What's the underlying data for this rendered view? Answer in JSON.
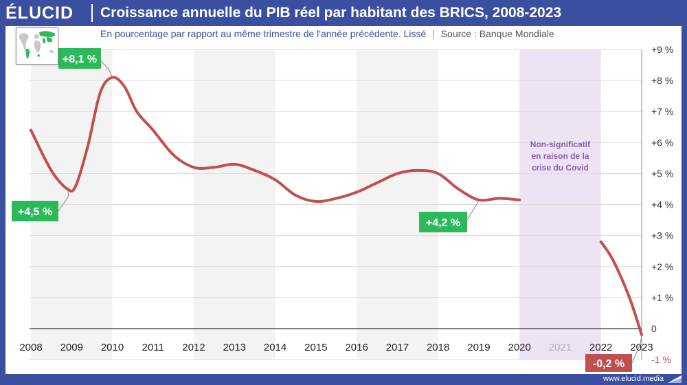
{
  "header": {
    "logo": "ÉLUCID",
    "title": "Croissance annuelle du PIB réel par habitant des BRICS, 2008-2023"
  },
  "subtitle": {
    "text": "En pourcentage par rapport au même trimestre de l'année précédente. Lissé",
    "separator": "|",
    "source": "Source : Banque Mondiale"
  },
  "footer": {
    "url": "www.elucid.media"
  },
  "colors": {
    "brand": "#3b4fa0",
    "line": "#c0504d",
    "label_green": "#2eb85c",
    "label_red": "#c0504d",
    "covid_band": "#ece4f2",
    "covid_text": "#8e5bb5"
  },
  "map_icon": "world-map-brics-icon",
  "chart_data": {
    "type": "line",
    "title": "Croissance annuelle du PIB réel par habitant des BRICS, 2008-2023",
    "xlabel": "",
    "ylabel": "",
    "x_range": [
      2008,
      2023
    ],
    "ylim": [
      -1,
      9
    ],
    "x_ticks": [
      "2008",
      "2009",
      "2010",
      "2011",
      "2012",
      "2013",
      "2014",
      "2015",
      "2016",
      "2017",
      "2018",
      "2019",
      "2020",
      "2021",
      "2022",
      "2023"
    ],
    "y_ticks": [
      "+9 %",
      "+8 %",
      "+7 %",
      "+6 %",
      "+5 %",
      "+4 %",
      "+3 %",
      "+2 %",
      "+1 %",
      "0",
      "-1 %"
    ],
    "grid": true,
    "series": [
      {
        "name": "PIB réel par habitant BRICS (valeurs lissées)",
        "segments": [
          [
            [
              2008.0,
              6.4
            ],
            [
              2008.5,
              5.1
            ],
            [
              2008.9,
              4.5
            ],
            [
              2009.1,
              4.6
            ],
            [
              2009.4,
              5.9
            ],
            [
              2009.7,
              7.6
            ],
            [
              2010.0,
              8.1
            ],
            [
              2010.3,
              7.8
            ],
            [
              2010.6,
              7.0
            ],
            [
              2011.0,
              6.4
            ],
            [
              2011.5,
              5.6
            ],
            [
              2012.0,
              5.2
            ],
            [
              2012.5,
              5.2
            ],
            [
              2013.0,
              5.3
            ],
            [
              2013.5,
              5.1
            ],
            [
              2014.0,
              4.8
            ],
            [
              2014.5,
              4.3
            ],
            [
              2015.0,
              4.1
            ],
            [
              2015.5,
              4.2
            ],
            [
              2016.0,
              4.4
            ],
            [
              2016.5,
              4.7
            ],
            [
              2017.0,
              5.0
            ],
            [
              2017.5,
              5.1
            ],
            [
              2018.0,
              5.0
            ],
            [
              2018.5,
              4.5
            ],
            [
              2019.0,
              4.15
            ],
            [
              2019.5,
              4.2
            ],
            [
              2020.0,
              4.15
            ]
          ],
          [
            [
              2022.0,
              2.8
            ],
            [
              2022.3,
              2.2
            ],
            [
              2022.7,
              1.0
            ],
            [
              2023.0,
              -0.2
            ]
          ]
        ]
      }
    ],
    "annotations": [
      {
        "text": "+8,1 %",
        "x": 2010.0,
        "y": 8.1,
        "style": "green"
      },
      {
        "text": "+4,5 %",
        "x": 2008.9,
        "y": 4.5,
        "style": "green"
      },
      {
        "text": "+4,2 %",
        "x": 2019.0,
        "y": 4.15,
        "style": "green"
      },
      {
        "text": "-0,2 %",
        "x": 2023.0,
        "y": -0.2,
        "style": "red"
      }
    ],
    "shaded_region": {
      "x": [
        2020,
        2022
      ],
      "label": [
        "Non-significatif",
        "en raison de la",
        "crise du Covid"
      ]
    }
  }
}
